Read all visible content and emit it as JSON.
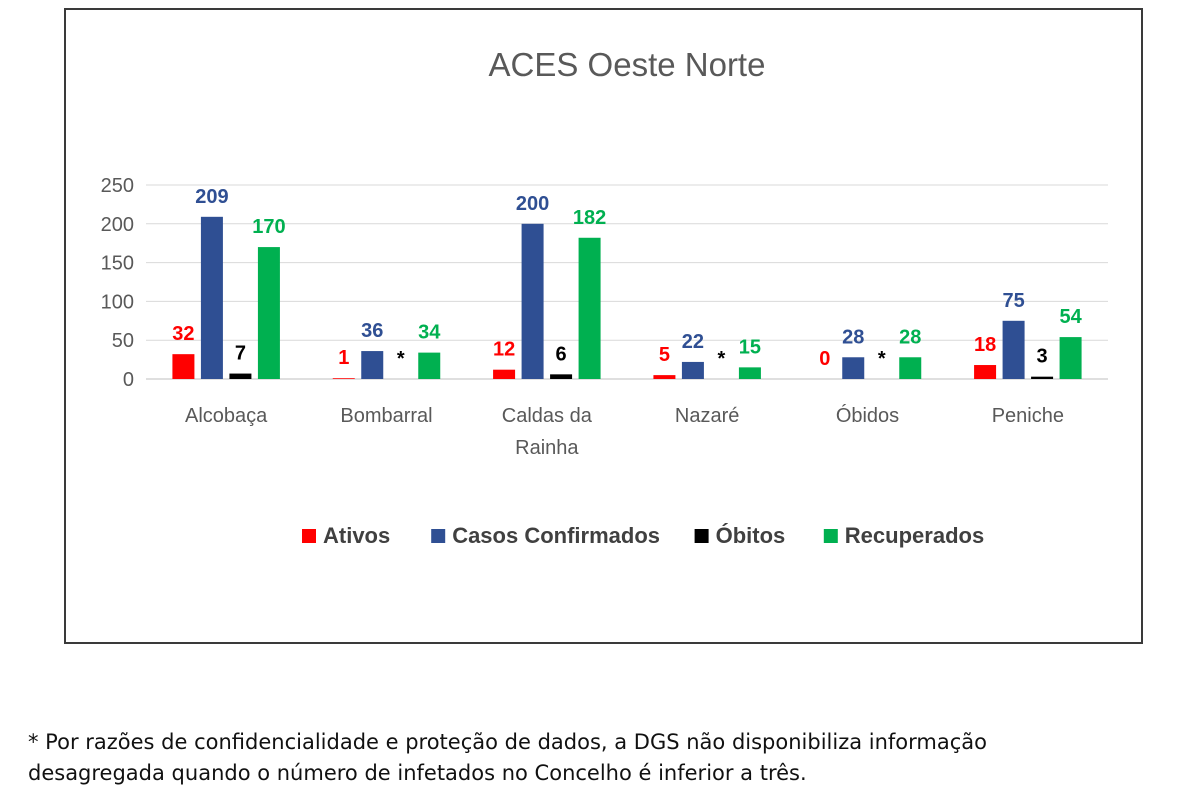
{
  "chart_data": {
    "type": "bar",
    "title": "ACES Oeste Norte",
    "categories": [
      [
        "Alcobaça"
      ],
      [
        "Bombarral"
      ],
      [
        "Caldas da",
        "Rainha"
      ],
      [
        "Nazaré"
      ],
      [
        "Óbidos"
      ],
      [
        "Peniche"
      ]
    ],
    "yticks": [
      "0",
      "50",
      "100",
      "150",
      "200",
      "250"
    ],
    "ylim": [
      0,
      250
    ],
    "grid": true,
    "legend_position": "bottom",
    "series": [
      {
        "name": "Ativos",
        "color": "#ff0000",
        "values": [
          32,
          1,
          12,
          5,
          0,
          18
        ],
        "labels": [
          "32",
          "1",
          "12",
          "5",
          "0",
          "18"
        ]
      },
      {
        "name": "Casos Confirmados",
        "color": "#2f4f93",
        "values": [
          209,
          36,
          200,
          22,
          28,
          75
        ],
        "labels": [
          "209",
          "36",
          "200",
          "22",
          "28",
          "75"
        ]
      },
      {
        "name": "Óbitos",
        "color": "#000000",
        "values": [
          7,
          null,
          6,
          null,
          null,
          3
        ],
        "labels": [
          "7",
          "*",
          "6",
          "*",
          "*",
          "3"
        ]
      },
      {
        "name": "Recuperados",
        "color": "#00b050",
        "values": [
          170,
          34,
          182,
          15,
          28,
          54
        ],
        "labels": [
          "170",
          "34",
          "182",
          "15",
          "28",
          "54"
        ]
      }
    ]
  },
  "footnote": {
    "line1": "* Por razões de confidencialidade e proteção de dados, a DGS não disponibiliza informação",
    "line2": "desagregada quando o número de infetados no Concelho é inferior a três."
  }
}
